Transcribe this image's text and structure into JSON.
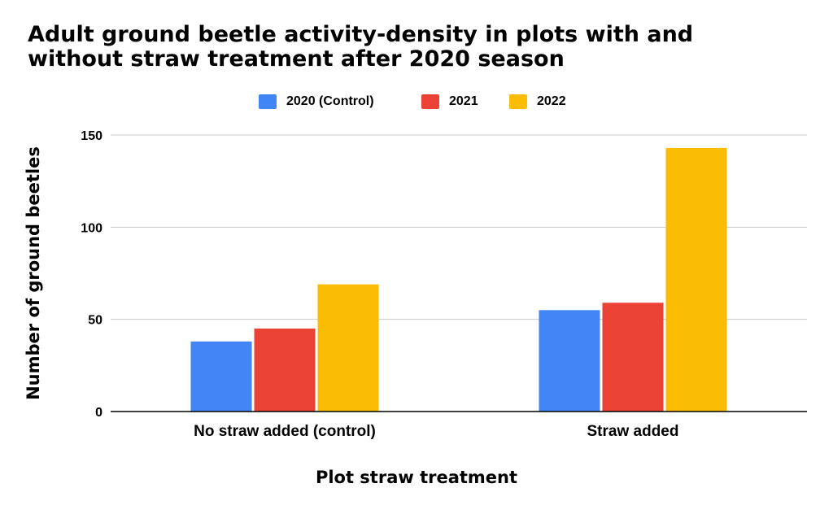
{
  "chart_data": {
    "type": "bar",
    "title": "Adult ground beetle activity-density in plots with and without straw treatment after 2020 season",
    "title_lines": [
      "Adult ground beetle activity-density in plots with and",
      "without straw treatment after 2020 season"
    ],
    "xlabel": "Plot straw treatment",
    "ylabel": "Number of ground beetles",
    "categories": [
      "No straw added (control)",
      "Straw added"
    ],
    "series": [
      {
        "name": "2020 (Control)",
        "color": "#4285f4",
        "values": [
          38,
          55
        ]
      },
      {
        "name": "2021",
        "color": "#ea4335",
        "values": [
          45,
          59
        ]
      },
      {
        "name": "2022",
        "color": "#fbbc04",
        "values": [
          69,
          143
        ]
      }
    ],
    "ylim": [
      0,
      150
    ],
    "yticks": [
      "0",
      "50",
      "100",
      "150"
    ],
    "ytick_values": [
      0,
      50,
      100,
      150
    ],
    "grid": true,
    "legend_position": "top"
  }
}
